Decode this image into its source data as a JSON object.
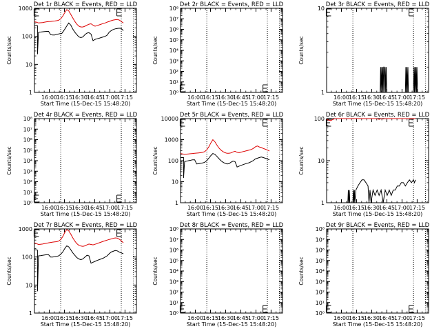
{
  "figure": {
    "background": "#ffffff",
    "event_color": "#000000",
    "lld_color": "#dd0000",
    "xtick_labels": [
      "16:00",
      "16:15",
      "16:30",
      "16:45",
      "17:00",
      "17:15"
    ],
    "xtick_minutes": [
      -8.33,
      6.67,
      21.67,
      36.67,
      51.67,
      66.67
    ],
    "xlabel": "Start Time (15-Dec-15 15:48:20)",
    "ylabel": "Counts/sec",
    "x_range_minutes": [
      -23,
      78
    ],
    "marker_lines_minutes": [
      3,
      63,
      75
    ],
    "s_marker_minute": -21,
    "e_marker_minute": 61
  },
  "chart_data": [
    {
      "type": "line",
      "title": "Det 1r BLACK = Events, RED = LLD",
      "yscale": "log",
      "ylim": [
        1,
        1000
      ],
      "ytick_values": [
        1,
        10,
        100,
        1000
      ],
      "ytick_labels": [
        "1",
        "10",
        "100",
        "1000"
      ],
      "se_marker_y": 950,
      "series": [
        {
          "name": "Events",
          "color": "#000000",
          "x": [
            -23,
            -21,
            -20,
            -20,
            -19,
            -17,
            -15,
            -13,
            -11,
            -9,
            -7,
            -5,
            -3,
            -1,
            1,
            2,
            3,
            4,
            5,
            7,
            9,
            11,
            13,
            15,
            17,
            19,
            21,
            23,
            25,
            27,
            29,
            31,
            33,
            35,
            37,
            39,
            41,
            43,
            45,
            47,
            49,
            51,
            53,
            55,
            57,
            59,
            61,
            63,
            65
          ],
          "y": [
            240,
            245,
            240,
            23,
            140,
            142,
            145,
            148,
            150,
            150,
            115,
            112,
            112,
            118,
            122,
            124,
            125,
            126,
            140,
            180,
            235,
            300,
            250,
            180,
            140,
            115,
            95,
            90,
            95,
            115,
            130,
            135,
            120,
            70,
            78,
            82,
            85,
            90,
            95,
            100,
            110,
            140,
            160,
            175,
            185,
            190,
            195,
            190,
            160
          ]
        },
        {
          "name": "LLD",
          "color": "#dd0000",
          "x": [
            -23,
            -21,
            -20,
            -19,
            -17,
            -15,
            -13,
            -11,
            -9,
            -7,
            -5,
            -3,
            -1,
            1,
            3,
            5,
            7,
            9,
            11,
            13,
            15,
            17,
            19,
            21,
            23,
            25,
            27,
            29,
            31,
            33,
            35,
            37,
            39,
            41,
            43,
            45,
            47,
            49,
            51,
            53,
            55,
            57,
            59,
            61,
            63,
            65
          ],
          "y": [
            330,
            320,
            310,
            300,
            305,
            310,
            320,
            330,
            335,
            340,
            345,
            350,
            360,
            375,
            420,
            520,
            700,
            900,
            800,
            600,
            450,
            340,
            270,
            230,
            215,
            215,
            230,
            250,
            270,
            280,
            250,
            230,
            240,
            255,
            270,
            285,
            300,
            320,
            340,
            360,
            380,
            390,
            400,
            380,
            340,
            300
          ]
        }
      ]
    },
    {
      "type": "line",
      "title": "Det 2r BLACK = Events, RED = LLD",
      "yscale": "log",
      "ylim": [
        1,
        100000000
      ],
      "ytick_values": [
        1,
        10,
        100,
        1000,
        10000,
        100000,
        1000000,
        10000000,
        100000000
      ],
      "ytick_labels": [
        "10⁰",
        "10¹",
        "10²",
        "10³",
        "10⁴",
        "10⁵",
        "10⁶",
        "10⁷",
        "10⁸"
      ],
      "se_marker_y": 1.6,
      "series": []
    },
    {
      "type": "line",
      "title": "Det 3r BLACK = Events, RED = LLD",
      "yscale": "log",
      "ylim": [
        1,
        10
      ],
      "ytick_values": [
        1,
        10
      ],
      "ytick_labels": [
        "1",
        "10"
      ],
      "se_marker_y": 9.5,
      "series": [
        {
          "name": "Events",
          "color": "#000000",
          "x": [
            -23,
            30,
            30.5,
            31,
            31.5,
            32,
            32.5,
            33,
            33.5,
            34,
            34.5,
            35,
            35.5,
            36,
            36.5,
            37,
            55,
            55.5,
            56,
            56.5,
            57,
            57.5,
            58,
            63,
            63.5,
            64,
            64.5,
            65,
            65.5,
            66,
            66.5,
            67
          ],
          "y": [
            1,
            1,
            2,
            1,
            2,
            1,
            2,
            1,
            2,
            2,
            1,
            2,
            1,
            2,
            1,
            1,
            1,
            2,
            1,
            2,
            1,
            2,
            1,
            1,
            2,
            1,
            2,
            1,
            2,
            1,
            2,
            1
          ]
        }
      ]
    },
    {
      "type": "line",
      "title": "Det 4r BLACK = Events, RED = LLD",
      "yscale": "log",
      "ylim": [
        1,
        100000000
      ],
      "ytick_values": [
        1,
        10,
        100,
        1000,
        10000,
        100000,
        1000000,
        10000000,
        100000000
      ],
      "ytick_labels": [
        "10⁰",
        "10¹",
        "10²",
        "10³",
        "10⁴",
        "10⁵",
        "10⁶",
        "10⁷",
        "10⁸"
      ],
      "se_marker_y": 1.6,
      "series": []
    },
    {
      "type": "line",
      "title": "Det 5r BLACK = Events, RED = LLD",
      "yscale": "log",
      "ylim": [
        1,
        10000
      ],
      "ytick_values": [
        1,
        10,
        100,
        1000,
        10000
      ],
      "ytick_labels": [
        "1",
        "10",
        "100",
        "1000",
        "10000"
      ],
      "se_marker_y": 9500,
      "series": [
        {
          "name": "Events",
          "color": "#000000",
          "x": [
            -23,
            -21,
            -20,
            -20,
            -19,
            -17,
            -15,
            -13,
            -11,
            -9,
            -7,
            -5,
            -3,
            -1,
            1,
            3,
            5,
            7,
            9,
            11,
            13,
            15,
            17,
            19,
            21,
            23,
            25,
            27,
            29,
            31,
            33,
            35,
            37,
            39,
            41,
            43,
            45,
            47,
            49,
            51,
            53,
            55,
            57,
            59,
            61,
            63,
            65
          ],
          "y": [
            140,
            140,
            140,
            15,
            90,
            95,
            100,
            105,
            110,
            110,
            70,
            72,
            75,
            78,
            85,
            100,
            130,
            175,
            220,
            200,
            160,
            125,
            100,
            85,
            75,
            70,
            72,
            85,
            95,
            90,
            50,
            55,
            60,
            65,
            70,
            75,
            80,
            90,
            100,
            120,
            130,
            140,
            150,
            140,
            130,
            120,
            110
          ]
        },
        {
          "name": "LLD",
          "color": "#dd0000",
          "x": [
            -23,
            -21,
            -19,
            -17,
            -15,
            -13,
            -11,
            -9,
            -7,
            -5,
            -3,
            -1,
            1,
            3,
            5,
            7,
            9,
            11,
            13,
            15,
            17,
            19,
            21,
            23,
            25,
            27,
            29,
            31,
            33,
            35,
            37,
            39,
            41,
            43,
            45,
            47,
            49,
            51,
            53,
            55,
            57,
            59,
            61,
            63,
            65
          ],
          "y": [
            220,
            210,
            200,
            205,
            210,
            215,
            220,
            225,
            230,
            235,
            240,
            250,
            270,
            330,
            450,
            700,
            1000,
            800,
            550,
            400,
            320,
            270,
            240,
            225,
            225,
            235,
            260,
            280,
            250,
            240,
            255,
            270,
            285,
            300,
            320,
            340,
            380,
            450,
            500,
            450,
            420,
            380,
            350,
            320,
            290
          ]
        }
      ]
    },
    {
      "type": "line",
      "title": "Det 6r BLACK = Events, RED = LLD",
      "yscale": "log",
      "ylim": [
        1,
        100
      ],
      "ytick_values": [
        1,
        10,
        100
      ],
      "ytick_labels": [
        "1",
        "10",
        "100"
      ],
      "se_marker_y": 95,
      "series": [
        {
          "name": "Events",
          "color": "#000000",
          "x": [
            -23,
            -2,
            -1.5,
            -1,
            -0.5,
            0,
            3,
            3.5,
            4,
            4.5,
            5,
            6,
            8,
            10,
            12,
            14,
            16,
            18,
            19,
            20,
            21,
            23,
            25,
            27,
            29,
            31,
            33,
            35,
            37,
            39,
            41,
            43,
            45,
            47,
            49,
            51,
            53,
            55,
            57,
            59,
            61,
            63,
            64,
            65
          ],
          "y": [
            1,
            1,
            2,
            1,
            2,
            1,
            1,
            2,
            1,
            2,
            1,
            2,
            2.5,
            3,
            3.5,
            3.5,
            3,
            2.5,
            1,
            2,
            1,
            2,
            1.5,
            2,
            1.5,
            2,
            1,
            2,
            1.5,
            2,
            1.5,
            2,
            2,
            2.5,
            2.5,
            3,
            3,
            2.5,
            3,
            3.5,
            3,
            3.5,
            3,
            3.5
          ]
        },
        {
          "name": "LLD",
          "color": "#dd0000",
          "x": [
            -23,
            -19,
            -17,
            -15,
            27,
            29,
            31,
            33,
            35,
            37,
            50,
            65
          ],
          "y": [
            95,
            90,
            95,
            100,
            100,
            96,
            100,
            98,
            100,
            100,
            100,
            100
          ]
        }
      ]
    },
    {
      "type": "line",
      "title": "Det 7r BLACK = Events, RED = LLD",
      "yscale": "log",
      "ylim": [
        1,
        1000
      ],
      "ytick_values": [
        1,
        10,
        100,
        1000
      ],
      "ytick_labels": [
        "1",
        "10",
        "100",
        "1000"
      ],
      "se_marker_y": 950,
      "series": [
        {
          "name": "Events",
          "color": "#000000",
          "x": [
            -23,
            -21,
            -20,
            -20,
            -19,
            -17,
            -15,
            -13,
            -11,
            -9,
            -7,
            -5,
            -3,
            -1,
            1,
            3,
            5,
            7,
            9,
            11,
            13,
            15,
            17,
            19,
            21,
            23,
            25,
            27,
            29,
            31,
            33,
            35,
            37,
            39,
            41,
            43,
            45,
            47,
            49,
            51,
            53,
            55,
            57,
            59,
            61,
            63,
            65
          ],
          "y": [
            180,
            180,
            175,
            6,
            110,
            112,
            115,
            118,
            120,
            120,
            100,
            100,
            102,
            105,
            110,
            125,
            150,
            200,
            250,
            230,
            180,
            140,
            115,
            95,
            85,
            80,
            85,
            100,
            115,
            110,
            60,
            65,
            70,
            75,
            80,
            85,
            90,
            100,
            110,
            130,
            150,
            160,
            170,
            165,
            150,
            140,
            130
          ]
        },
        {
          "name": "LLD",
          "color": "#dd0000",
          "x": [
            -23,
            -21,
            -19,
            -17,
            -15,
            -13,
            -11,
            -9,
            -7,
            -5,
            -3,
            -1,
            1,
            3,
            5,
            7,
            9,
            11,
            13,
            15,
            17,
            19,
            21,
            23,
            25,
            27,
            29,
            31,
            33,
            35,
            37,
            39,
            41,
            43,
            45,
            47,
            49,
            51,
            53,
            55,
            57,
            59,
            61,
            63,
            65
          ],
          "y": [
            320,
            300,
            280,
            285,
            290,
            300,
            310,
            320,
            330,
            340,
            345,
            350,
            370,
            420,
            530,
            750,
            950,
            850,
            650,
            480,
            370,
            300,
            260,
            245,
            240,
            250,
            270,
            290,
            280,
            270,
            285,
            300,
            320,
            340,
            360,
            380,
            400,
            420,
            440,
            460,
            480,
            470,
            430,
            380,
            320
          ]
        }
      ]
    },
    {
      "type": "line",
      "title": "Det 8r BLACK = Events, RED = LLD",
      "yscale": "log",
      "ylim": [
        1,
        100000000
      ],
      "ytick_values": [
        1,
        10,
        100,
        1000,
        10000,
        100000,
        1000000,
        10000000,
        100000000
      ],
      "ytick_labels": [
        "10⁰",
        "10¹",
        "10²",
        "10³",
        "10⁴",
        "10⁵",
        "10⁶",
        "10⁷",
        "10⁸"
      ],
      "se_marker_y": 1.6,
      "series": []
    },
    {
      "type": "line",
      "title": "Det 9r BLACK = Events, RED = LLD",
      "yscale": "log",
      "ylim": [
        1,
        100000000
      ],
      "ytick_values": [
        1,
        10,
        100,
        1000,
        10000,
        100000,
        1000000,
        10000000,
        100000000
      ],
      "ytick_labels": [
        "10⁰",
        "10¹",
        "10²",
        "10³",
        "10⁴",
        "10⁵",
        "10⁶",
        "10⁷",
        "10⁸"
      ],
      "se_marker_y": 1.6,
      "series": []
    }
  ]
}
